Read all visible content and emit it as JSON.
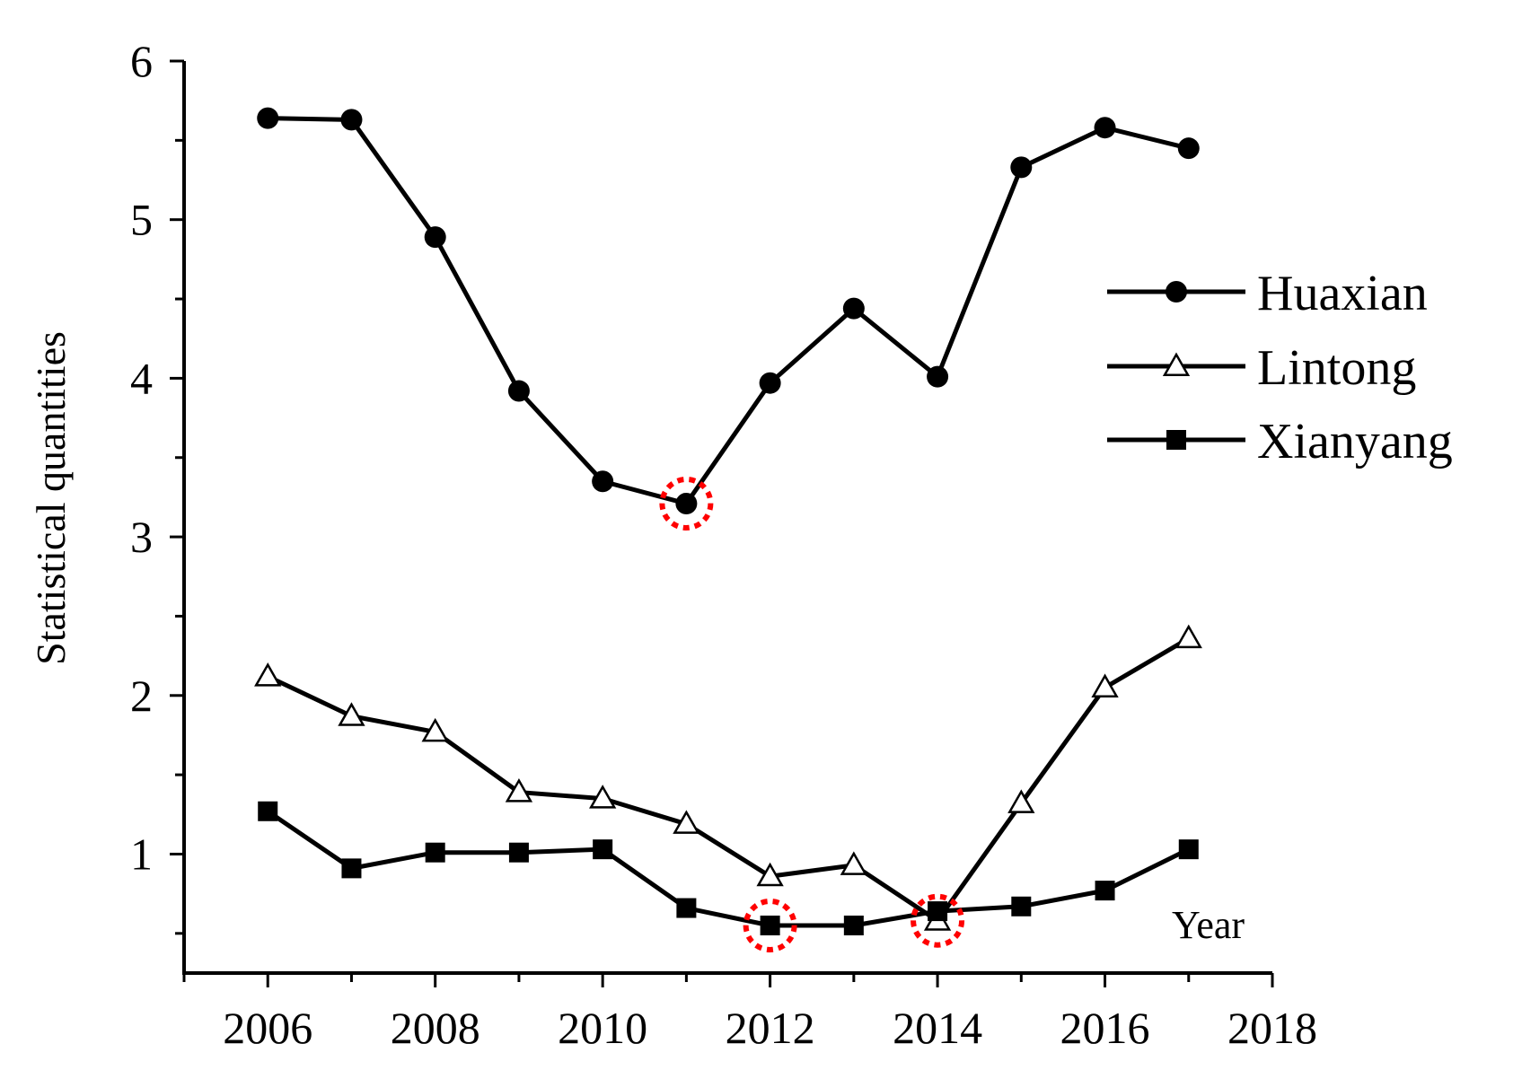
{
  "chart_data": {
    "type": "line",
    "title": "",
    "xlabel": "Year",
    "ylabel": "Statistical quantities",
    "xlim": [
      2005,
      2018
    ],
    "ylim": [
      0.25,
      6
    ],
    "x_ticks": [
      2006,
      2008,
      2010,
      2012,
      2014,
      2016,
      2018
    ],
    "y_ticks": [
      1,
      2,
      3,
      4,
      5,
      6
    ],
    "legend_position": "right",
    "grid": false,
    "x": [
      2006,
      2007,
      2008,
      2009,
      2010,
      2011,
      2012,
      2013,
      2014,
      2015,
      2016,
      2017
    ],
    "series": [
      {
        "name": "Huaxian",
        "marker": "circle-filled",
        "values": [
          5.64,
          5.63,
          4.89,
          3.92,
          3.35,
          3.21,
          3.97,
          4.44,
          4.01,
          5.33,
          5.58,
          5.45
        ]
      },
      {
        "name": "Lintong",
        "marker": "triangle-open",
        "values": [
          2.12,
          1.87,
          1.77,
          1.39,
          1.35,
          1.19,
          0.86,
          0.93,
          0.58,
          1.32,
          2.05,
          2.36
        ]
      },
      {
        "name": "Xianyang",
        "marker": "square-filled",
        "values": [
          1.27,
          0.91,
          1.01,
          1.01,
          1.03,
          0.66,
          0.55,
          0.55,
          0.64,
          0.67,
          0.77,
          1.03
        ]
      }
    ],
    "highlights": [
      {
        "series": "Huaxian",
        "x": 2011,
        "color": "#ff0000"
      },
      {
        "series": "Xianyang",
        "x": 2012,
        "color": "#ff0000"
      },
      {
        "series": "Lintong",
        "x": 2014,
        "color": "#ff0000"
      }
    ],
    "line_color": "#000000"
  }
}
